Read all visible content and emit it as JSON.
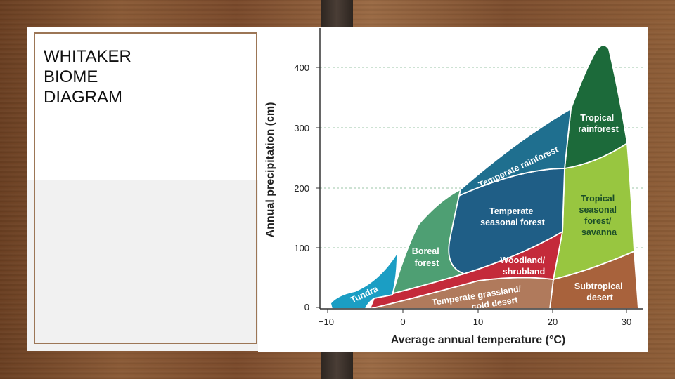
{
  "slide": {
    "title": "WHITAKER\nBIOME\nDIAGRAM"
  },
  "chart_data": {
    "type": "area",
    "xlabel": "Average annual temperature (°C)",
    "ylabel": "Annual precipitation (cm)",
    "xlim": [
      -12,
      31
    ],
    "ylim": [
      0,
      440
    ],
    "x_ticks": [
      "−10",
      "0",
      "10",
      "20",
      "30"
    ],
    "y_ticks": [
      "0",
      "100",
      "200",
      "300",
      "400"
    ],
    "grid": "horizontal dashed",
    "biomes": [
      {
        "name": "Tundra",
        "label_lines": [
          "Tundra"
        ],
        "color": "#1b9ec4"
      },
      {
        "name": "Boreal forest",
        "label_lines": [
          "Boreal",
          "forest"
        ],
        "color": "#4e9f73"
      },
      {
        "name": "Temperate rainforest",
        "label_lines": [
          "Temperate rainforest"
        ],
        "color": "#1f6f8f"
      },
      {
        "name": "Temperate seasonal forest",
        "label_lines": [
          "Temperate",
          "seasonal forest"
        ],
        "color": "#1f5e86"
      },
      {
        "name": "Woodland/shrubland",
        "label_lines": [
          "Woodland/",
          "shrubland"
        ],
        "color": "#c42a3a"
      },
      {
        "name": "Temperate grassland/cold desert",
        "label_lines": [
          "Temperate grassland/",
          "cold desert"
        ],
        "color": "#b07a5c"
      },
      {
        "name": "Tropical rainforest",
        "label_lines": [
          "Tropical",
          "rainforest"
        ],
        "color": "#1c6a3a"
      },
      {
        "name": "Tropical seasonal forest/savanna",
        "label_lines": [
          "Tropical",
          "seasonal",
          "forest/",
          "savanna"
        ],
        "color": "#98c640"
      },
      {
        "name": "Subtropical desert",
        "label_lines": [
          "Subtropical",
          "desert"
        ],
        "color": "#a8623c"
      }
    ]
  }
}
